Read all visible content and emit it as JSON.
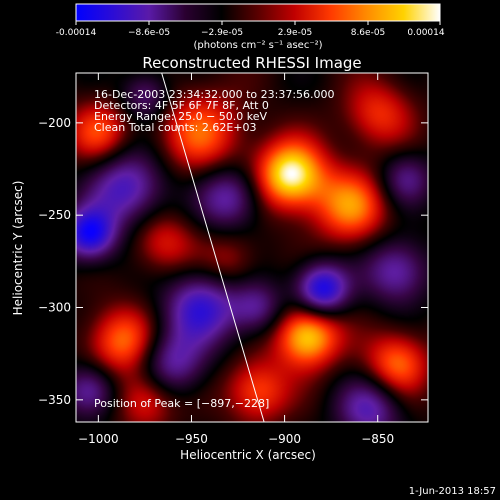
{
  "colorbar": {
    "tick_labels": [
      "-0.00014",
      "−8.6e-05",
      "−2.9e-05",
      "2.9e-05",
      "8.6e-05",
      "0.00014"
    ],
    "unit_label": "(photons cm⁻² s⁻¹ asec⁻²)",
    "range": [
      -0.00014,
      0.00014
    ],
    "colors": [
      "#0000ff",
      "#2b0cd6",
      "#5a1aa8",
      "#2a0030",
      "#000000",
      "#5a0000",
      "#c00000",
      "#ff3a00",
      "#ff8c00",
      "#ffd200",
      "#ffffff"
    ]
  },
  "chart_data": {
    "type": "heatmap",
    "title": "Reconstructed RHESSI Image",
    "xlabel": "Heliocentric X (arcsec)",
    "ylabel": "Heliocentric Y (arcsec)",
    "xlim": [
      -1012,
      -823
    ],
    "ylim": [
      -362,
      -173
    ],
    "x_ticks": [
      -1000,
      -950,
      -900,
      -850
    ],
    "x_tick_labels": [
      "−1000",
      "−950",
      "−900",
      "−850"
    ],
    "y_ticks": [
      -200,
      -250,
      -300,
      -350
    ],
    "y_tick_labels": [
      "−200",
      "−250",
      "−300",
      "−350"
    ],
    "info_lines": [
      "16-Dec-2003 23:34:32.000 to 23:37:56.000",
      "Detectors: 4F 5F 6F 7F 8F, Att 0",
      "Energy Range: 25.0 − 50.0 keV",
      "Clean     Total counts: 2.62E+03"
    ],
    "peak_label": "Position of Peak = [−897,−228]",
    "peak_position": [
      -897,
      -228
    ],
    "limb_line": [
      [
        -966,
        -173
      ],
      [
        -911,
        -362
      ]
    ],
    "blobs": [
      {
        "x": -897,
        "y": -228,
        "a": 1.0,
        "s": 13
      },
      {
        "x": -888,
        "y": -315,
        "a": 0.9,
        "s": 12
      },
      {
        "x": -865,
        "y": -245,
        "a": 0.65,
        "s": 14
      },
      {
        "x": -840,
        "y": -330,
        "a": 0.6,
        "s": 12
      },
      {
        "x": -988,
        "y": -318,
        "a": 0.6,
        "s": 13
      },
      {
        "x": -945,
        "y": -205,
        "a": 0.55,
        "s": 16
      },
      {
        "x": -1000,
        "y": -205,
        "a": 0.5,
        "s": 12
      },
      {
        "x": -915,
        "y": -345,
        "a": 0.55,
        "s": 12
      },
      {
        "x": -975,
        "y": -350,
        "a": 0.45,
        "s": 11
      },
      {
        "x": -850,
        "y": -195,
        "a": 0.45,
        "s": 13
      },
      {
        "x": -965,
        "y": -265,
        "a": 0.4,
        "s": 12
      },
      {
        "x": -930,
        "y": -275,
        "a": 0.3,
        "s": 11
      },
      {
        "x": -1005,
        "y": -260,
        "a": -0.95,
        "s": 10
      },
      {
        "x": -880,
        "y": -290,
        "a": -0.95,
        "s": 10
      },
      {
        "x": -985,
        "y": -235,
        "a": -0.7,
        "s": 14
      },
      {
        "x": -945,
        "y": -300,
        "a": -0.75,
        "s": 14
      },
      {
        "x": -930,
        "y": -240,
        "a": -0.6,
        "s": 12
      },
      {
        "x": -840,
        "y": -280,
        "a": -0.6,
        "s": 12
      },
      {
        "x": -855,
        "y": -355,
        "a": -0.6,
        "s": 12
      },
      {
        "x": -1005,
        "y": -345,
        "a": -0.6,
        "s": 10
      },
      {
        "x": -960,
        "y": -330,
        "a": -0.55,
        "s": 12
      },
      {
        "x": -915,
        "y": -300,
        "a": -0.5,
        "s": 10
      },
      {
        "x": -835,
        "y": -230,
        "a": -0.45,
        "s": 10
      },
      {
        "x": -975,
        "y": -185,
        "a": -0.45,
        "s": 9
      }
    ]
  },
  "footer": {
    "timestamp": "1-Jun-2013 18:57"
  }
}
